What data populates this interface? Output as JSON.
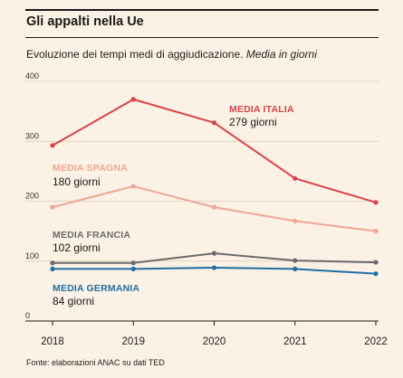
{
  "title": "Gli appalti nella Ue",
  "subtitle": "Evoluzione dei tempi medi di aggiudicazione.",
  "subtitle_italic": "Media in giorni",
  "source": "Fonte: elaborazioni ANAC su dati TED",
  "chart_data": {
    "type": "line",
    "x": [
      2018,
      2019,
      2020,
      2021,
      2022
    ],
    "ylim": [
      0,
      400
    ],
    "yticks": [
      0,
      100,
      200,
      300,
      400
    ],
    "grid": true,
    "series": [
      {
        "name": "MEDIA ITALIA",
        "average_label": "279 giorni",
        "color": "#d9434a",
        "values": [
          293,
          370,
          331,
          238,
          198
        ]
      },
      {
        "name": "MEDIA SPAGNA",
        "average_label": "180 giorni",
        "color": "#f0a596",
        "values": [
          190,
          225,
          190,
          167,
          150
        ]
      },
      {
        "name": "MEDIA FRANCIA",
        "average_label": "102 giorni",
        "color": "#6b6b6b",
        "values": [
          97,
          97,
          113,
          101,
          98
        ]
      },
      {
        "name": "MEDIA GERMANIA",
        "average_label": "84 giorni",
        "color": "#1f6fa6",
        "values": [
          87,
          87,
          89,
          87,
          79
        ]
      }
    ]
  }
}
